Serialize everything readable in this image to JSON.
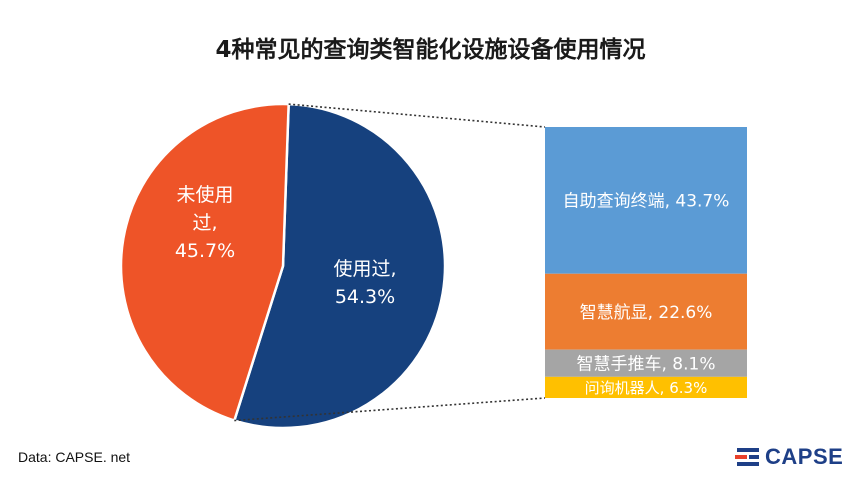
{
  "chart_data": {
    "type": "pie",
    "title": "4种常见的查询类智能化设施设备使用情况",
    "pie": {
      "slices": [
        {
          "label_lines": [
            "使用过,",
            "54.3%"
          ],
          "value": 54.3,
          "color": "#16417e"
        },
        {
          "label_lines": [
            "未使用",
            "过,",
            "45.7%"
          ],
          "value": 45.7,
          "color": "#ee5428"
        }
      ]
    },
    "breakdown_bar": {
      "parent": "使用过",
      "segments": [
        {
          "name": "自助查询终端",
          "value": 43.7,
          "label": "自助查询终端, 43.7%",
          "color": "#5b9bd5"
        },
        {
          "name": "智慧航显",
          "value": 22.6,
          "label": "智慧航显, 22.6%",
          "color": "#ed7d31"
        },
        {
          "name": "智慧手推车",
          "value": 8.1,
          "label": "智慧手推车, 8.1%",
          "color": "#a5a5a5"
        },
        {
          "name": "问询机器人",
          "value": 6.3,
          "label": "问询机器人, 6.3%",
          "color": "#ffc000"
        }
      ]
    }
  },
  "source": "Data: CAPSE. net",
  "logo": {
    "text": "CAPSE",
    "color": "#1e3f87",
    "accent": "#e8402a"
  }
}
